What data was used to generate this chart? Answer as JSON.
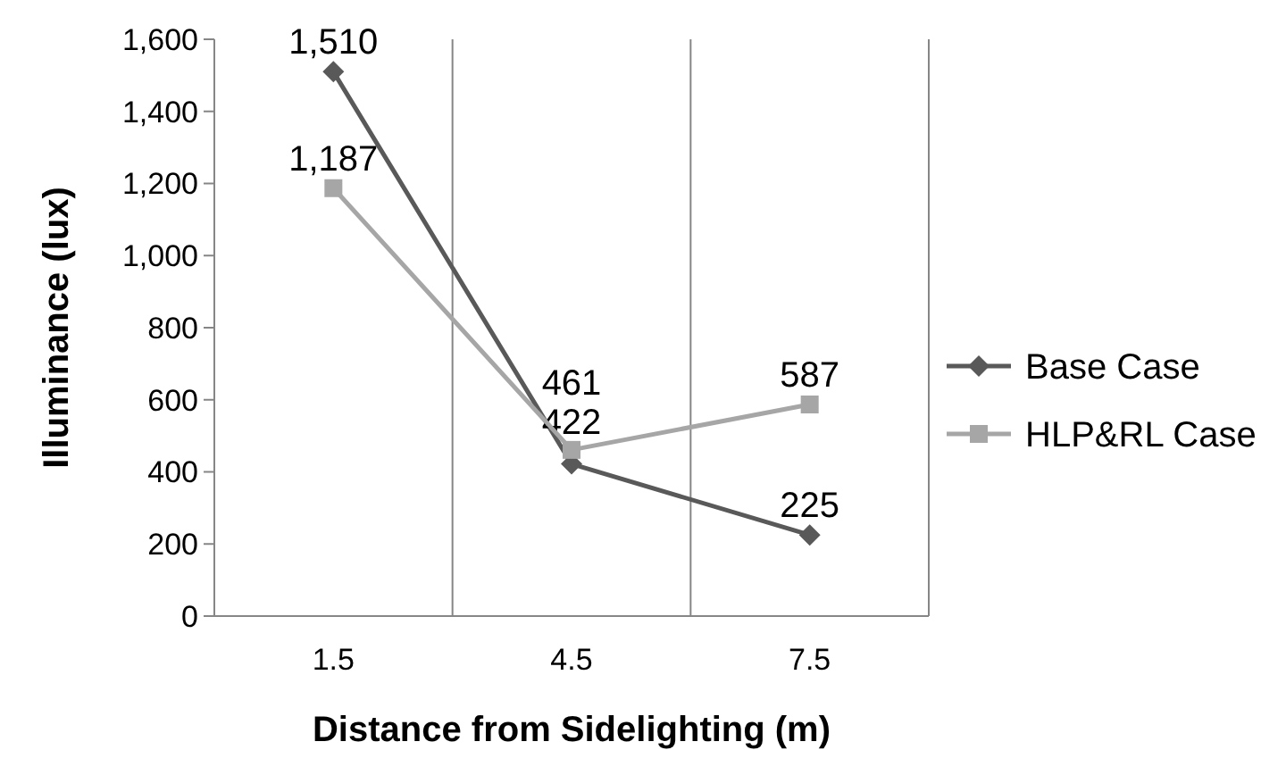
{
  "chart_data": {
    "type": "line",
    "xlabel": "Distance from Sidelighting (m)",
    "ylabel": "Illuminance (lux)",
    "categories": [
      "1.5",
      "4.5",
      "7.5"
    ],
    "series": [
      {
        "name": "Base Case",
        "color": "#595959",
        "marker": "diamond",
        "values": [
          1510,
          422,
          225
        ],
        "value_labels": [
          "1,510",
          "422",
          "225"
        ]
      },
      {
        "name": "HLP&RL Case",
        "color": "#a6a6a6",
        "marker": "square",
        "values": [
          1187,
          461,
          587
        ],
        "value_labels": [
          "1,187",
          "461",
          "587"
        ]
      }
    ],
    "ylim": [
      0,
      1600
    ],
    "yticks": [
      0,
      {
        "value": 200,
        "label": "200"
      },
      {
        "value": 400,
        "label": "400"
      },
      {
        "value": 600,
        "label": "600"
      },
      {
        "value": 800,
        "label": "800"
      },
      {
        "value": 1000,
        "label": "1,000"
      },
      {
        "value": 1200,
        "label": "1,200"
      },
      {
        "value": 1400,
        "label": "1,400"
      },
      {
        "value": 1600,
        "label": "1,600"
      }
    ],
    "grid": "x",
    "legend": "right"
  }
}
